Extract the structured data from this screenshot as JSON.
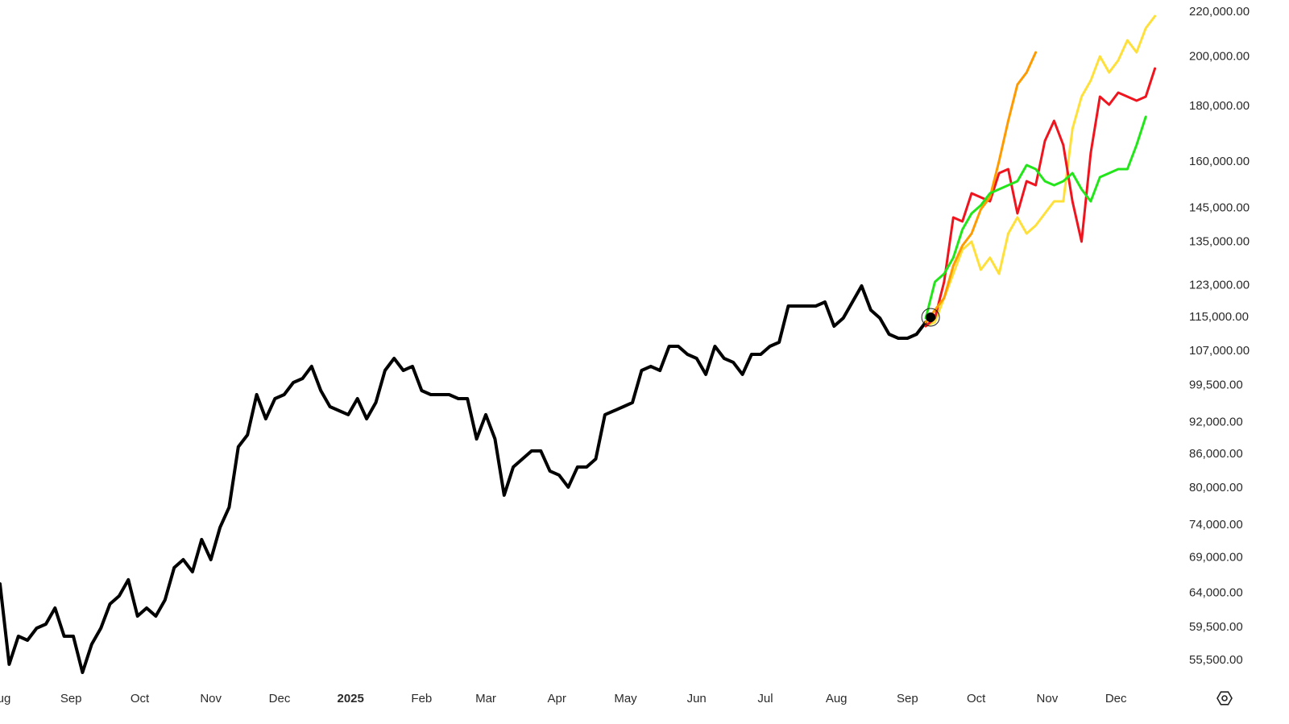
{
  "chart_data": {
    "type": "line",
    "log_scale": true,
    "ylim": [
      52720,
      225670
    ],
    "yticks": [
      {
        "value": 55500,
        "label": "55,500.00"
      },
      {
        "value": 59500,
        "label": "59,500.00"
      },
      {
        "value": 64000,
        "label": "64,000.00"
      },
      {
        "value": 69000,
        "label": "69,000.00"
      },
      {
        "value": 74000,
        "label": "74,000.00"
      },
      {
        "value": 80000,
        "label": "80,000.00"
      },
      {
        "value": 86000,
        "label": "86,000.00"
      },
      {
        "value": 92000,
        "label": "92,000.00"
      },
      {
        "value": 99500,
        "label": "99,500.00"
      },
      {
        "value": 107000,
        "label": "107,000.00"
      },
      {
        "value": 115000,
        "label": "115,000.00"
      },
      {
        "value": 123000,
        "label": "123,000.00"
      },
      {
        "value": 135000,
        "label": "135,000.00"
      },
      {
        "value": 145000,
        "label": "145,000.00"
      },
      {
        "value": 160000,
        "label": "160,000.00"
      },
      {
        "value": 180000,
        "label": "180,000.00"
      },
      {
        "value": 200000,
        "label": "200,000.00"
      },
      {
        "value": 220000,
        "label": "220,000.00"
      }
    ],
    "xlim": [
      0,
      514
    ],
    "xticks": [
      {
        "value": 0,
        "label": "Aug"
      },
      {
        "value": 31,
        "label": "Sep"
      },
      {
        "value": 61,
        "label": "Oct"
      },
      {
        "value": 92,
        "label": "Nov"
      },
      {
        "value": 122,
        "label": "Dec"
      },
      {
        "value": 153,
        "label": "2025"
      },
      {
        "value": 184,
        "label": "Feb"
      },
      {
        "value": 212,
        "label": "Mar"
      },
      {
        "value": 243,
        "label": "Apr"
      },
      {
        "value": 273,
        "label": "May"
      },
      {
        "value": 304,
        "label": "Jun"
      },
      {
        "value": 334,
        "label": "Jul"
      },
      {
        "value": 365,
        "label": "Aug"
      },
      {
        "value": 396,
        "label": "Sep"
      },
      {
        "value": 426,
        "label": "Oct"
      },
      {
        "value": 457,
        "label": "Nov"
      },
      {
        "value": 487,
        "label": "Dec"
      }
    ],
    "series": [
      {
        "color": "#000000",
        "x": [
          0,
          4,
          8,
          12,
          16,
          20,
          24,
          28,
          32,
          36,
          40,
          44,
          48,
          52,
          56,
          60,
          64,
          68,
          72,
          76,
          80,
          84,
          88,
          92,
          96,
          100,
          104,
          108,
          112,
          116,
          120,
          124,
          128,
          132,
          136,
          140,
          144,
          148,
          152,
          156,
          160,
          164,
          168,
          172,
          176,
          180,
          184,
          188,
          192,
          196,
          200,
          204,
          208,
          212,
          216,
          220,
          224,
          228,
          232,
          236,
          240,
          244,
          248,
          252,
          256,
          260,
          264,
          268,
          272,
          276,
          280,
          284,
          288,
          292,
          296,
          300,
          304,
          308,
          312,
          316,
          320,
          324,
          328,
          332,
          336,
          340,
          344,
          348,
          352,
          356,
          360,
          364,
          368,
          372,
          376,
          380,
          384,
          388,
          392,
          396,
          400,
          404
        ],
        "values": [
          65290,
          55030,
          58420,
          57920,
          59430,
          59940,
          62020,
          58420,
          58420,
          54090,
          57430,
          59430,
          62560,
          63640,
          65860,
          60970,
          62020,
          60970,
          63090,
          67570,
          68740,
          66990,
          71740,
          68740,
          73610,
          76820,
          87340,
          89600,
          97600,
          92720,
          96770,
          97600,
          100140,
          101000,
          103630,
          98440,
          95130,
          94320,
          93520,
          96770,
          92720,
          95950,
          102740,
          105410,
          102740,
          103630,
          98440,
          97600,
          97600,
          97600,
          96770,
          96770,
          88840,
          93520,
          88840,
          78820,
          83680,
          85130,
          86590,
          86590,
          82970,
          82260,
          80180,
          83680,
          83680,
          85130,
          93520,
          94320,
          95130,
          95950,
          102740,
          103630,
          102740,
          108150,
          108150,
          106320,
          105410,
          101870,
          108150,
          105410,
          104520,
          101870,
          106320,
          106320,
          108150,
          109080,
          117810,
          117810,
          117810,
          117810,
          118820,
          112870,
          114820,
          118820,
          122950,
          116800,
          114820,
          110960,
          110020,
          110020,
          110960,
          113840
        ]
      },
      {
        "color": "#ffe03a",
        "x": [
          404,
          408,
          412,
          416,
          420,
          424,
          428,
          432,
          436,
          440,
          444,
          448,
          452,
          456,
          460,
          464,
          468,
          472,
          476,
          480,
          484,
          488,
          492,
          496,
          500,
          504
        ],
        "values": [
          112870,
          113840,
          119840,
          126150,
          132790,
          135090,
          127230,
          130540,
          126150,
          137420,
          142200,
          137420,
          139790,
          143420,
          147150,
          147150,
          171640,
          183790,
          190190,
          200210,
          193470,
          198500,
          207180,
          201930,
          212560,
          218090
        ]
      },
      {
        "color": "#f0141e",
        "x": [
          404,
          408,
          412,
          416,
          420,
          424,
          428,
          432,
          436,
          440,
          444,
          448,
          452,
          456,
          460,
          464,
          468,
          472,
          476,
          480,
          484,
          488,
          492,
          496,
          500,
          504
        ],
        "values": [
          112870,
          114820,
          124010,
          142200,
          140990,
          149690,
          148410,
          147150,
          156230,
          157570,
          143420,
          153580,
          152270,
          167290,
          174600,
          165860,
          147150,
          135090,
          163050,
          183790,
          180680,
          185370,
          183790,
          182230,
          183790,
          195140
        ]
      },
      {
        "color": "#ff9a00",
        "x": [
          404,
          408,
          412,
          416,
          420,
          424,
          428,
          432,
          436,
          440,
          444,
          448,
          452
        ],
        "values": [
          113840,
          116800,
          119840,
          128330,
          133940,
          137420,
          144650,
          148410,
          160290,
          174600,
          188570,
          193470,
          201930
        ]
      },
      {
        "color": "#22e61a",
        "x": [
          404,
          408,
          412,
          416,
          420,
          424,
          428,
          432,
          436,
          440,
          444,
          448,
          452,
          456,
          460,
          464,
          468,
          472,
          476,
          480,
          484,
          488,
          492,
          496,
          500
        ],
        "values": [
          114820,
          124010,
          126150,
          130540,
          138600,
          143420,
          145890,
          149690,
          150970,
          152270,
          153580,
          158920,
          157570,
          153580,
          152270,
          153580,
          156230,
          150970,
          147150,
          154900,
          156230,
          157570,
          157570,
          165860,
          176100
        ]
      }
    ]
  }
}
